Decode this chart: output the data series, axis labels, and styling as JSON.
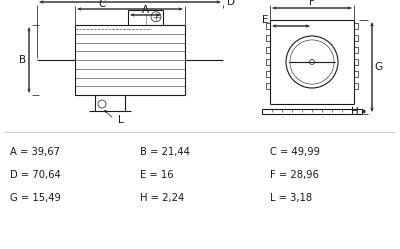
{
  "background_color": "#ffffff",
  "text_color": "#1a1a1a",
  "line_color": "#1a1a1a",
  "dim_rows": [
    [
      "A = 39,67",
      "B = 21,44",
      "C = 49,99"
    ],
    [
      "D = 70,64",
      "E = 16",
      "F = 28,96"
    ],
    [
      "G = 15,49",
      "H = 2,24",
      "L = 3,18"
    ]
  ],
  "font_size": 7.2,
  "label_fontsize": 7.5
}
